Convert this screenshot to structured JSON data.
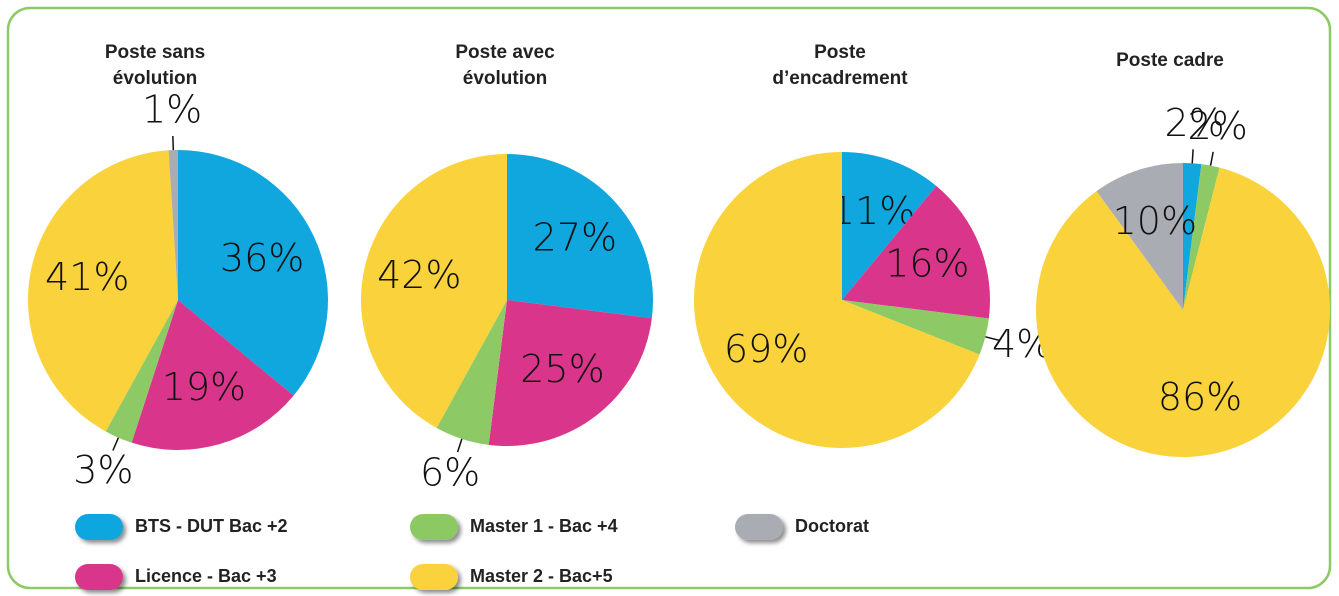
{
  "legend": {
    "categories": [
      "BTS - DUT Bac +2",
      "Licence - Bac +3",
      "Master 1 - Bac +4",
      "Master 2 - Bac+5",
      "Doctorat"
    ],
    "colors": [
      "#10a6de",
      "#d9358a",
      "#8dc964",
      "#f9d23c",
      "#a9adb3"
    ]
  },
  "chart_data": [
    {
      "type": "pie",
      "title": "Poste sans évolution",
      "values": [
        36,
        19,
        3,
        41,
        1
      ],
      "value_labels": [
        "36%",
        "19%",
        "3%",
        "41%",
        "1%"
      ]
    },
    {
      "type": "pie",
      "title": "Poste avec évolution",
      "values": [
        27,
        25,
        6,
        42,
        null
      ],
      "value_labels": [
        "27%",
        "25%",
        "6%",
        "42%",
        null
      ]
    },
    {
      "type": "pie",
      "title": "Poste d’encadrement",
      "values": [
        11,
        16,
        4,
        69,
        null
      ],
      "value_labels": [
        "11%",
        "16%",
        "4%",
        "69%",
        null
      ]
    },
    {
      "type": "pie",
      "title": "Poste cadre",
      "values": [
        2,
        null,
        2,
        86,
        10
      ],
      "value_labels": [
        "2%",
        null,
        "2%",
        "86%",
        "10%"
      ]
    }
  ]
}
